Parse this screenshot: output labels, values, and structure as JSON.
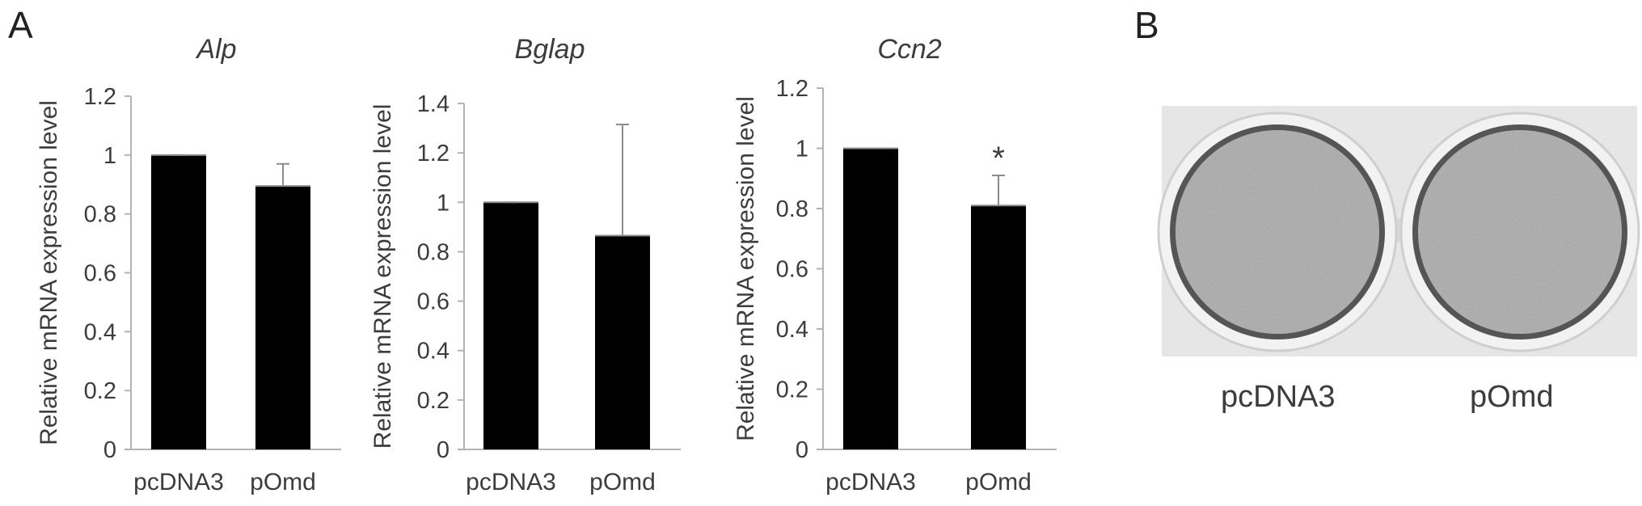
{
  "panel_labels": {
    "a": "A",
    "b": "B"
  },
  "chart_data": [
    {
      "type": "bar",
      "title": "Alp",
      "ylabel": "Relative mRNA expression level",
      "categories": [
        "pcDNA3",
        "pOmd"
      ],
      "values": [
        1.0,
        0.895
      ],
      "error": [
        0.0,
        0.075
      ],
      "ylim": [
        0,
        1.2
      ],
      "yticks": [
        "0",
        "0.2",
        "0.4",
        "0.6",
        "0.8",
        "1",
        "1.2"
      ],
      "significance": [
        "",
        ""
      ],
      "bar_color": "#000000",
      "grid": false
    },
    {
      "type": "bar",
      "title": "Bglap",
      "ylabel": "Relative mRNA expression level",
      "categories": [
        "pcDNA3",
        "pOmd"
      ],
      "values": [
        1.0,
        0.865
      ],
      "error": [
        0.0,
        0.45
      ],
      "ylim": [
        0,
        1.4
      ],
      "yticks": [
        "0",
        "0.2",
        "0.4",
        "0.6",
        "0.8",
        "1",
        "1.2",
        "1.4"
      ],
      "significance": [
        "",
        ""
      ],
      "bar_color": "#000000",
      "grid": false
    },
    {
      "type": "bar",
      "title": "Ccn2",
      "ylabel": "Relative mRNA expression level",
      "categories": [
        "pcDNA3",
        "pOmd"
      ],
      "values": [
        1.0,
        0.81
      ],
      "error": [
        0.0,
        0.1
      ],
      "ylim": [
        0,
        1.2
      ],
      "yticks": [
        "0",
        "0.2",
        "0.4",
        "0.6",
        "0.8",
        "1",
        "1.2"
      ],
      "significance": [
        "",
        "*"
      ],
      "bar_color": "#000000",
      "grid": false
    }
  ],
  "photo": {
    "labels": [
      "pcDNA3",
      "pOmd"
    ],
    "background_color": "#e8e8e8",
    "well_color": "#b4b4b4"
  }
}
